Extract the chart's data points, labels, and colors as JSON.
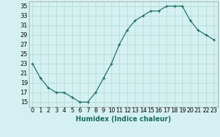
{
  "x": [
    0,
    1,
    2,
    3,
    4,
    5,
    6,
    7,
    8,
    9,
    10,
    11,
    12,
    13,
    14,
    15,
    16,
    17,
    18,
    19,
    20,
    21,
    22,
    23
  ],
  "y": [
    23,
    20,
    18,
    17,
    17,
    16,
    15,
    15,
    17,
    20,
    23,
    27,
    30,
    32,
    33,
    34,
    34,
    35,
    35,
    35,
    32,
    30,
    29,
    28
  ],
  "xlabel": "Humidex (Indice chaleur)",
  "xlim": [
    -0.5,
    23.5
  ],
  "ylim": [
    14,
    36
  ],
  "yticks": [
    15,
    17,
    19,
    21,
    23,
    25,
    27,
    29,
    31,
    33,
    35
  ],
  "xticks": [
    0,
    1,
    2,
    3,
    4,
    5,
    6,
    7,
    8,
    9,
    10,
    11,
    12,
    13,
    14,
    15,
    16,
    17,
    18,
    19,
    20,
    21,
    22,
    23
  ],
  "line_color": "#1a6b5e",
  "bg_color": "#d4f0f0",
  "grid_color": "#aed8d0",
  "label_fontsize": 7,
  "tick_fontsize": 6
}
